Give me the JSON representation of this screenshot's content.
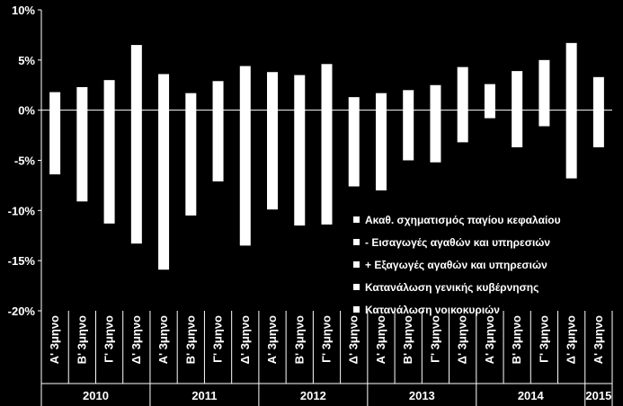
{
  "chart_data": {
    "type": "bar",
    "ylim": [
      -20,
      10
    ],
    "y_ticks": [
      "-20%",
      "-15%",
      "-10%",
      "-5%",
      "0%",
      "5%",
      "10%"
    ],
    "y_tick_values": [
      -20,
      -15,
      -10,
      -5,
      0,
      5,
      10
    ],
    "categories": [
      "Α' 3μηνο",
      "Β' 3μηνο",
      "Γ' 3μηνο",
      "Δ' 3μηνο",
      "Α' 3μηνο",
      "Β' 3μηνο",
      "Γ' 3μηνο",
      "Δ' 3μηνο",
      "Α' 3μηνο",
      "Β' 3μηνο",
      "Γ' 3μηνο",
      "Δ' 3μηνο",
      "Α' 3μηνο",
      "Β' 3μηνο",
      "Γ' 3μηνο",
      "Δ' 3μηνο",
      "Α' 3μηνο",
      "Β' 3μηνο",
      "Γ' 3μηνο",
      "Δ' 3μηνο",
      "Α' 3μηνο"
    ],
    "years": [
      {
        "label": "2010",
        "count": 4
      },
      {
        "label": "2011",
        "count": 4
      },
      {
        "label": "2012",
        "count": 4
      },
      {
        "label": "2013",
        "count": 4
      },
      {
        "label": "2014",
        "count": 4
      },
      {
        "label": "2015",
        "count": 1
      }
    ],
    "series_positive": [
      1.8,
      2.3,
      3.0,
      6.5,
      3.6,
      1.7,
      2.9,
      4.4,
      3.8,
      3.5,
      4.6,
      1.3,
      1.7,
      2.0,
      2.5,
      4.3,
      2.6,
      3.9,
      5.0,
      6.7,
      3.3
    ],
    "series_negative": [
      -6.4,
      -9.1,
      -11.3,
      -13.3,
      -15.9,
      -10.5,
      -7.1,
      -13.5,
      -9.9,
      -11.5,
      -11.4,
      -7.6,
      -8.0,
      -5.0,
      -5.2,
      -3.2,
      -0.8,
      -3.7,
      -1.6,
      -6.8,
      -3.7
    ],
    "legend": [
      "Ακαθ. σχηματισμός παγίου κεφαλαίου",
      "- Εισαγωγές αγαθών και υπηρεσιών",
      "+ Εξαγωγές αγαθών και υπηρεσιών",
      "Κατανάλωση γενικής κυβέρνησης",
      "Κατανάλωση νοικοκυριών"
    ],
    "colors": {
      "background": "#000000",
      "bars": "#ffffff",
      "grid": "#ffffff"
    },
    "grid": false
  }
}
